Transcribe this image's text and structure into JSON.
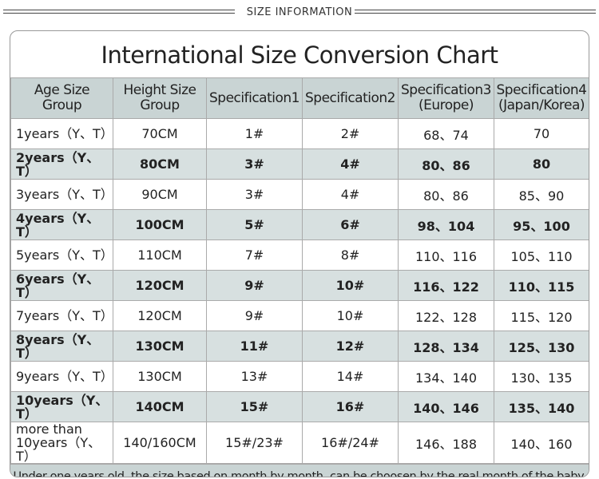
{
  "header": {
    "band": "SIZE INFORMATION",
    "title": "International Size Conversion Chart"
  },
  "table": {
    "columns": [
      "Age Size Group",
      "Height Size Group",
      "Specification1",
      "Specification2",
      "Specification3 (Europe)",
      "Specification4 (Japan/Korea)"
    ],
    "rows": [
      [
        "1years（Y、T）",
        "70CM",
        "1#",
        "2#",
        "68、74",
        "70"
      ],
      [
        "2years（Y、T）",
        "80CM",
        "3#",
        "4#",
        "80、86",
        "80"
      ],
      [
        "3years（Y、T）",
        "90CM",
        "3#",
        "4#",
        "80、86",
        "85、90"
      ],
      [
        "4years（Y、T）",
        "100CM",
        "5#",
        "6#",
        "98、104",
        "95、100"
      ],
      [
        "5years（Y、T）",
        "110CM",
        "7#",
        "8#",
        "110、116",
        "105、110"
      ],
      [
        "6years（Y、T）",
        "120CM",
        "9#",
        "10#",
        "116、122",
        "110、115"
      ],
      [
        "7years（Y、T）",
        "120CM",
        "9#",
        "10#",
        "122、128",
        "115、120"
      ],
      [
        "8years（Y、T）",
        "130CM",
        "11#",
        "12#",
        "128、134",
        "125、130"
      ],
      [
        "9years（Y、T）",
        "130CM",
        "13#",
        "14#",
        "134、140",
        "130、135"
      ],
      [
        "10years（Y、T）",
        "140CM",
        "15#",
        "16#",
        "140、146",
        "135、140"
      ],
      [
        "more than 10years（Y、T）",
        "140/160CM",
        "15#/23#",
        "16#/24#",
        "146、188",
        "140、160"
      ]
    ]
  },
  "footer": "Under one years old, the size based on month by month, can be choosen by the real month of the baby."
}
